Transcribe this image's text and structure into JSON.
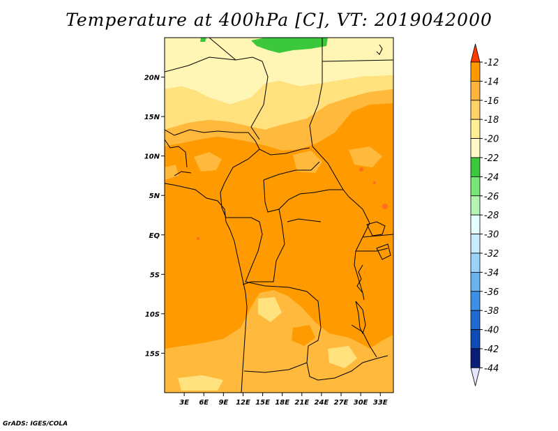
{
  "title": "Temperature at 400hPa [C], VT: 2019042000",
  "footer": "GrADS: IGES/COLA",
  "map": {
    "lon_range": [
      0,
      35
    ],
    "lat_range": [
      -20,
      25
    ],
    "lat_ticks": [
      "20N",
      "15N",
      "10N",
      "5N",
      "EQ",
      "5S",
      "10S",
      "15S"
    ],
    "lon_ticks": [
      "3E",
      "6E",
      "9E",
      "12E",
      "15E",
      "18E",
      "21E",
      "24E",
      "27E",
      "30E",
      "33E"
    ],
    "fill_colors": {
      "green": "#3cc83c",
      "pale": "#fff5b4",
      "light": "#ffe17d",
      "medium": "#ffb93c",
      "dominant": "#ff9b00",
      "hot": "#ff6d20"
    }
  },
  "colorbar": {
    "labels": [
      "-12",
      "-14",
      "-16",
      "-18",
      "-20",
      "-22",
      "-24",
      "-26",
      "-28",
      "-30",
      "-32",
      "-34",
      "-36",
      "-38",
      "-40",
      "-42",
      "-44"
    ],
    "colors": [
      "#ff6400",
      "#ff9b00",
      "#ffb43c",
      "#ffd269",
      "#fff096",
      "#fffac8",
      "#3cc83c",
      "#78e678",
      "#b4f5b4",
      "#e6ffff",
      "#c8ebff",
      "#9bd2fa",
      "#69b4f0",
      "#3c91e6",
      "#2369d2",
      "#0f4bb4",
      "#0a1e78"
    ],
    "top_color": "#ff3c00",
    "bottom_color": "#e6e6ff"
  }
}
